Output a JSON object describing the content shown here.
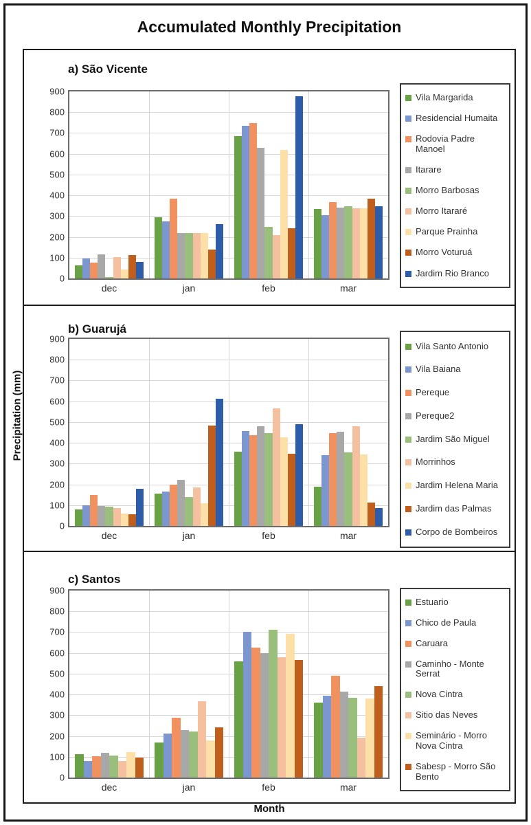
{
  "figure": {
    "title": "Accumulated Monthly Precipitation",
    "y_axis_label": "Precipitation (mm)",
    "x_axis_label": "Month"
  },
  "chart_data": [
    {
      "type": "bar",
      "title": "a) São Vicente",
      "categories": [
        "dec",
        "jan",
        "feb",
        "mar"
      ],
      "ylim": [
        0,
        900
      ],
      "ystep": 100,
      "grid": true,
      "legend_position": "right",
      "series": [
        {
          "name": "Vila Margarida",
          "color": "#69A244",
          "values": [
            62,
            295,
            685,
            335
          ]
        },
        {
          "name": "Residencial Humaita",
          "color": "#7C97D0",
          "values": [
            95,
            275,
            733,
            305
          ]
        },
        {
          "name": "Rodovia Padre Manoel",
          "color": "#F0915F",
          "values": [
            75,
            385,
            748,
            368
          ]
        },
        {
          "name": "Itarare",
          "color": "#A8A8A8",
          "values": [
            115,
            220,
            630,
            342
          ]
        },
        {
          "name": "Morro Barbosas",
          "color": "#9ABE7C",
          "values": [
            8,
            220,
            248,
            347
          ]
        },
        {
          "name": "Morro Itararé",
          "color": "#F5C0A0",
          "values": [
            103,
            220,
            210,
            338
          ]
        },
        {
          "name": "Parque Prainha",
          "color": "#FCE0A8",
          "values": [
            42,
            220,
            620,
            337
          ]
        },
        {
          "name": "Morro Voturuá",
          "color": "#C05F1D",
          "values": [
            113,
            140,
            240,
            385
          ]
        },
        {
          "name": "Jardim Rio Branco",
          "color": "#2D5CA8",
          "values": [
            78,
            262,
            878,
            347
          ]
        }
      ]
    },
    {
      "type": "bar",
      "title": "b) Guarujá",
      "categories": [
        "dec",
        "jan",
        "feb",
        "mar"
      ],
      "ylim": [
        0,
        900
      ],
      "ystep": 100,
      "grid": true,
      "legend_position": "right",
      "series": [
        {
          "name": "Vila Santo Antonio",
          "color": "#69A244",
          "values": [
            78,
            155,
            358,
            190
          ]
        },
        {
          "name": "Vila Baiana",
          "color": "#7C97D0",
          "values": [
            100,
            167,
            458,
            340
          ]
        },
        {
          "name": "Pereque",
          "color": "#F0915F",
          "values": [
            148,
            198,
            437,
            448
          ]
        },
        {
          "name": "Pereque2",
          "color": "#A8A8A8",
          "values": [
            97,
            222,
            480,
            453
          ]
        },
        {
          "name": "Jardim São Miguel",
          "color": "#9ABE7C",
          "values": [
            92,
            140,
            447,
            355
          ]
        },
        {
          "name": "Morrinhos",
          "color": "#F5C0A0",
          "values": [
            85,
            187,
            567,
            480
          ]
        },
        {
          "name": "Jardim Helena Maria",
          "color": "#FCE0A8",
          "values": [
            60,
            108,
            428,
            343
          ]
        },
        {
          "name": "Jardim das Palmas",
          "color": "#C05F1D",
          "values": [
            55,
            482,
            347,
            112
          ]
        },
        {
          "name": "Corpo de Bombeiros",
          "color": "#2D5CA8",
          "values": [
            180,
            612,
            490,
            85
          ]
        }
      ]
    },
    {
      "type": "bar",
      "title": "c) Santos",
      "categories": [
        "dec",
        "jan",
        "feb",
        "mar"
      ],
      "ylim": [
        0,
        900
      ],
      "ystep": 100,
      "grid": true,
      "legend_position": "right",
      "series": [
        {
          "name": "Estuario",
          "color": "#69A244",
          "values": [
            113,
            168,
            558,
            360
          ]
        },
        {
          "name": "Chico de Paula",
          "color": "#7C97D0",
          "values": [
            78,
            213,
            703,
            395
          ]
        },
        {
          "name": "Caruara",
          "color": "#F0915F",
          "values": [
            103,
            287,
            625,
            490
          ]
        },
        {
          "name": "Caminho - Monte Serrat",
          "color": "#A8A8A8",
          "values": [
            120,
            228,
            598,
            415
          ]
        },
        {
          "name": "Nova Cintra",
          "color": "#9ABE7C",
          "values": [
            107,
            222,
            713,
            385
          ]
        },
        {
          "name": "Sitio das Neves",
          "color": "#F5C0A0",
          "values": [
            80,
            368,
            580,
            193
          ]
        },
        {
          "name": "Seminário - Morro Nova Cintra",
          "color": "#FCE0A8",
          "values": [
            122,
            178,
            690,
            380
          ]
        },
        {
          "name": "Sabesp - Morro São Bento",
          "color": "#C05F1D",
          "values": [
            97,
            243,
            567,
            440
          ]
        }
      ]
    }
  ]
}
